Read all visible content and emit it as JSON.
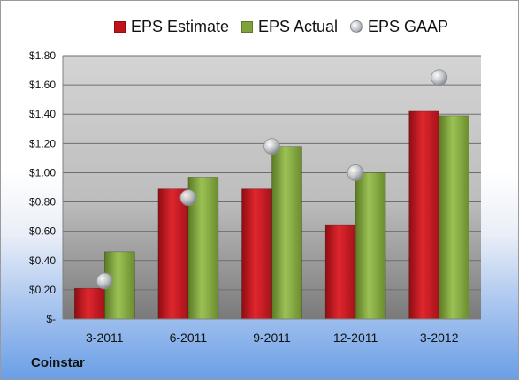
{
  "company": "Coinstar",
  "colors": {
    "estimate": "#c0141c",
    "actual": "#7fa33a",
    "gaap": "#b8bcc2"
  },
  "chart_data": {
    "type": "bar",
    "title": "",
    "xlabel": "",
    "ylabel": "",
    "categories": [
      "3-2011",
      "6-2011",
      "9-2011",
      "12-2011",
      "3-2012"
    ],
    "series": [
      {
        "name": "EPS Estimate",
        "kind": "bar",
        "values": [
          0.21,
          0.89,
          0.89,
          0.64,
          1.42
        ]
      },
      {
        "name": "EPS Actual",
        "kind": "bar",
        "values": [
          0.46,
          0.97,
          1.18,
          1.0,
          1.39
        ]
      },
      {
        "name": "EPS GAAP",
        "kind": "marker",
        "values": [
          0.26,
          0.83,
          1.18,
          1.0,
          1.65
        ]
      }
    ],
    "ylim": [
      0,
      1.8
    ],
    "yticks": [
      0,
      0.2,
      0.4,
      0.6,
      0.8,
      1.0,
      1.2,
      1.4,
      1.6,
      1.8
    ],
    "ytick_labels": [
      "$-",
      "$0.20",
      "$0.40",
      "$0.60",
      "$0.80",
      "$1.00",
      "$1.20",
      "$1.40",
      "$1.60",
      "$1.80"
    ],
    "grid": true,
    "legend_position": "top"
  }
}
